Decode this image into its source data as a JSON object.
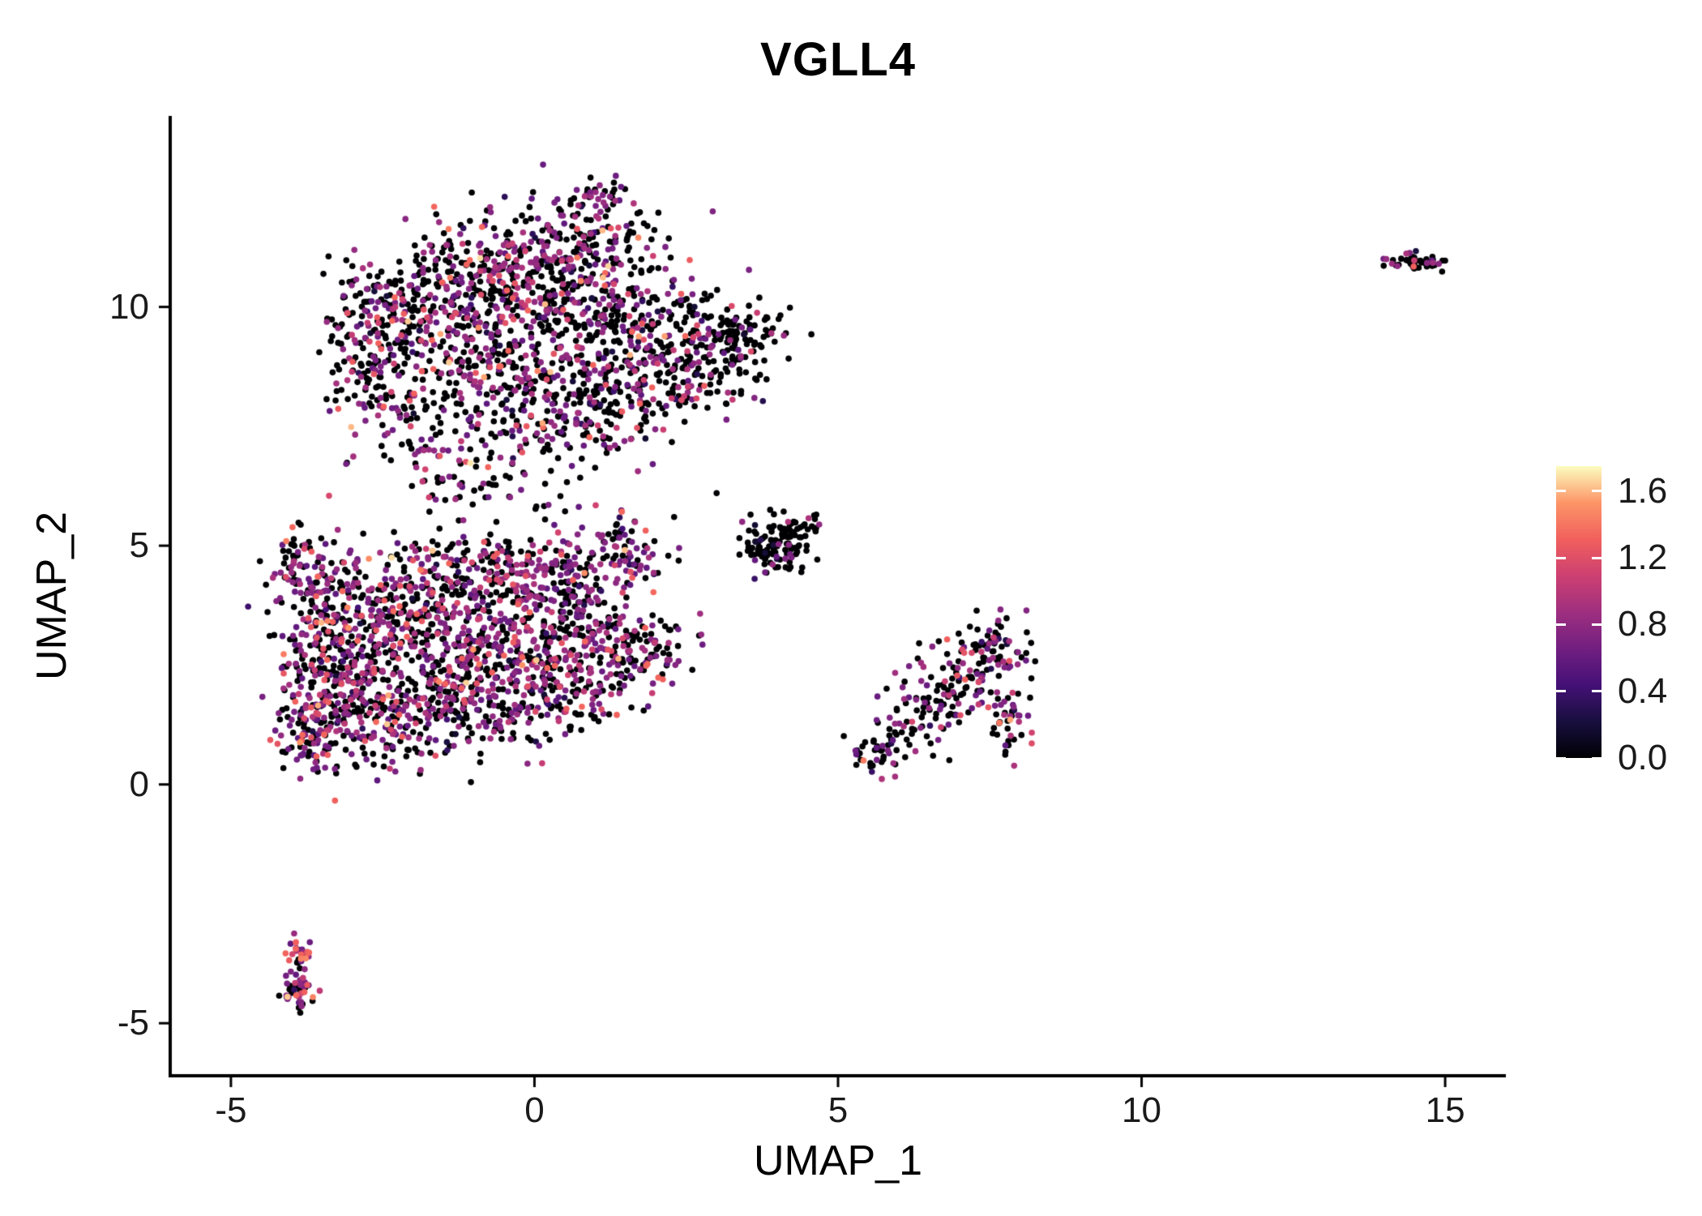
{
  "chart_data": {
    "type": "scatter",
    "title": "VGLL4",
    "xlabel": "UMAP_1",
    "ylabel": "UMAP_2",
    "xlim": [
      -6.0,
      16.0
    ],
    "ylim": [
      -6.1,
      14.0
    ],
    "x_ticks": [
      -5,
      0,
      5,
      10,
      15
    ],
    "y_ticks": [
      -5,
      0,
      5,
      10
    ],
    "grid": false,
    "point_radius_px": 3.8,
    "seed": 42,
    "legend": {
      "type": "colorbar",
      "position": "right",
      "tick_labels": [
        "1.6",
        "1.2",
        "0.8",
        "0.4",
        "0.0"
      ],
      "tick_values": [
        1.6,
        1.2,
        0.8,
        0.4,
        0.0
      ],
      "range": [
        0,
        1.75
      ],
      "colormap": "magma",
      "colormap_stops": [
        "#000004",
        "#180f3e",
        "#451077",
        "#721f81",
        "#9f2f7f",
        "#cd4071",
        "#f1605d",
        "#fd9567",
        "#fcfdbf"
      ]
    },
    "expression_bands": {
      "zero": [
        0,
        0
      ],
      "low": [
        0.15,
        0.45
      ],
      "mid": [
        0.55,
        0.95
      ],
      "high": [
        1.0,
        1.35
      ],
      "vhigh": [
        1.4,
        1.7
      ]
    },
    "clusters": [
      {
        "name": "main-upper",
        "mix": {
          "zero": 0.58,
          "low": 0.03,
          "mid": 0.31,
          "high": 0.07,
          "vhigh": 0.01
        },
        "blobs": [
          [
            -2.9,
            9.3,
            0.35,
            0.8,
            100
          ],
          [
            -2.2,
            10.0,
            0.5,
            0.6,
            110
          ],
          [
            -1.3,
            10.4,
            0.6,
            0.7,
            150
          ],
          [
            -0.2,
            10.9,
            0.7,
            0.6,
            170
          ],
          [
            0.9,
            11.2,
            0.6,
            0.55,
            150
          ],
          [
            1.1,
            12.3,
            0.22,
            0.18,
            30
          ],
          [
            0.3,
            9.9,
            0.9,
            0.7,
            200
          ],
          [
            1.8,
            9.6,
            0.8,
            0.6,
            170
          ],
          [
            -1.0,
            8.9,
            0.8,
            0.6,
            150
          ],
          [
            -2.4,
            8.1,
            0.4,
            0.5,
            70
          ],
          [
            0.2,
            8.1,
            0.9,
            0.5,
            140
          ],
          [
            1.4,
            8.3,
            0.7,
            0.5,
            110
          ],
          [
            -1.6,
            7.0,
            0.4,
            0.5,
            45
          ],
          [
            -0.3,
            7.0,
            0.5,
            0.4,
            45
          ],
          [
            0.9,
            7.2,
            0.4,
            0.4,
            35
          ],
          [
            -1.2,
            6.1,
            0.45,
            0.3,
            22
          ],
          [
            0.3,
            5.9,
            0.4,
            0.25,
            12
          ]
        ]
      },
      {
        "name": "main-upper-right-lobe",
        "mix": {
          "zero": 0.76,
          "low": 0.03,
          "mid": 0.17,
          "high": 0.04
        },
        "blobs": [
          [
            3.0,
            9.2,
            0.55,
            0.5,
            110
          ],
          [
            2.5,
            8.5,
            0.45,
            0.4,
            60
          ],
          [
            3.6,
            9.5,
            0.3,
            0.35,
            40
          ]
        ]
      },
      {
        "name": "main-lower",
        "mix": {
          "zero": 0.46,
          "low": 0.03,
          "mid": 0.4,
          "high": 0.1,
          "vhigh": 0.01
        },
        "blobs": [
          [
            -3.5,
            3.8,
            0.4,
            0.7,
            130
          ],
          [
            -3.6,
            2.2,
            0.35,
            0.6,
            110
          ],
          [
            -3.7,
            0.9,
            0.3,
            0.4,
            90
          ],
          [
            -2.7,
            3.2,
            0.6,
            0.8,
            200
          ],
          [
            -2.6,
            1.5,
            0.6,
            0.6,
            180
          ],
          [
            -1.6,
            3.8,
            0.7,
            0.7,
            210
          ],
          [
            -1.5,
            2.0,
            0.7,
            0.6,
            190
          ],
          [
            -0.5,
            4.4,
            0.6,
            0.5,
            150
          ],
          [
            -0.4,
            2.9,
            0.7,
            0.6,
            170
          ],
          [
            -0.4,
            1.5,
            0.6,
            0.4,
            90
          ],
          [
            0.6,
            4.5,
            0.5,
            0.45,
            110
          ],
          [
            0.7,
            3.2,
            0.6,
            0.5,
            120
          ],
          [
            1.5,
            2.6,
            0.5,
            0.4,
            100
          ],
          [
            0.6,
            1.9,
            0.5,
            0.35,
            70
          ],
          [
            1.6,
            4.8,
            0.35,
            0.3,
            45
          ],
          [
            -3.9,
            4.6,
            0.2,
            0.4,
            40
          ],
          [
            1.3,
            5.4,
            0.3,
            0.2,
            14
          ],
          [
            2.0,
            2.9,
            0.3,
            0.3,
            28
          ]
        ]
      },
      {
        "name": "mid-small",
        "mix": {
          "zero": 0.84,
          "low": 0.04,
          "mid": 0.1,
          "high": 0.02
        },
        "blobs": [
          [
            4.0,
            5.0,
            0.28,
            0.33,
            100
          ],
          [
            4.4,
            5.4,
            0.16,
            0.16,
            20
          ],
          [
            3.6,
            5.0,
            0.15,
            0.2,
            15
          ]
        ]
      },
      {
        "name": "right-mid",
        "mix": {
          "zero": 0.55,
          "low": 0.04,
          "mid": 0.32,
          "high": 0.08,
          "vhigh": 0.01
        },
        "blobs": [
          [
            5.6,
            0.6,
            0.22,
            0.2,
            30
          ],
          [
            6.1,
            1.1,
            0.35,
            0.3,
            45
          ],
          [
            6.7,
            1.8,
            0.4,
            0.35,
            50
          ],
          [
            7.2,
            2.4,
            0.4,
            0.4,
            70
          ],
          [
            7.6,
            2.9,
            0.3,
            0.35,
            55
          ],
          [
            7.8,
            1.2,
            0.18,
            0.4,
            40
          ]
        ]
      },
      {
        "name": "bottom-left-small",
        "mix": {
          "zero": 0.3,
          "low": 0.05,
          "mid": 0.45,
          "high": 0.18,
          "vhigh": 0.02
        },
        "blobs": [
          [
            -3.85,
            -3.5,
            0.1,
            0.2,
            28
          ],
          [
            -3.9,
            -4.25,
            0.13,
            0.22,
            42
          ]
        ]
      },
      {
        "name": "far-right",
        "mix": {
          "zero": 0.75,
          "low": 0.02,
          "mid": 0.13,
          "high": 0.1
        },
        "blobs": [
          [
            14.55,
            10.95,
            0.26,
            0.09,
            52
          ]
        ]
      }
    ],
    "outliers": [
      [
        2.6,
        2.4,
        0
      ],
      [
        3.0,
        6.1,
        0
      ],
      [
        2.3,
        5.6,
        0
      ]
    ]
  }
}
